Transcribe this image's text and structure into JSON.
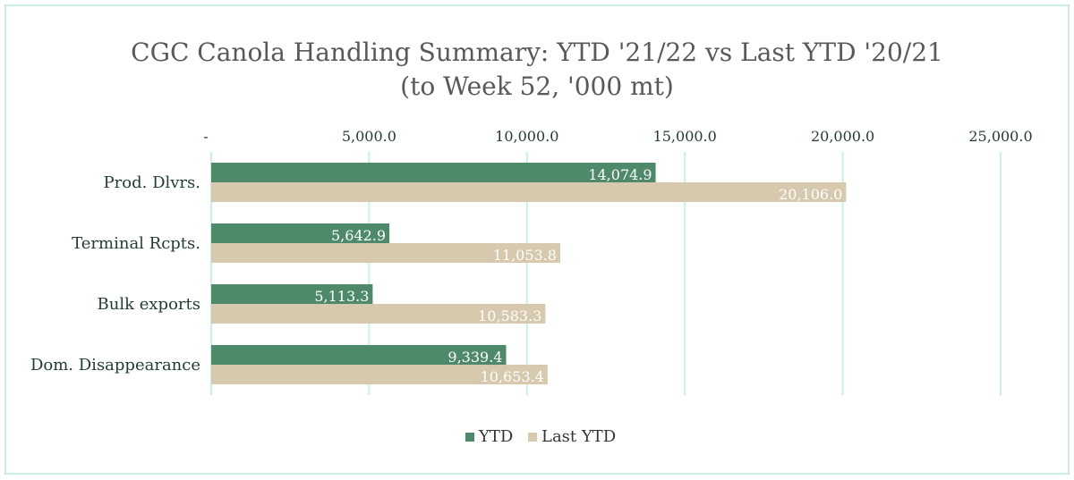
{
  "chart_data": {
    "type": "bar",
    "orientation": "horizontal",
    "title": "CGC Canola Handling Summary: YTD '21/22 vs Last YTD '20/21",
    "subtitle": "(to Week 52, '000 mt)",
    "categories": [
      "Prod. Dlvrs.",
      "Terminal Rcpts.",
      "Bulk exports",
      "Dom. Disappearance"
    ],
    "series": [
      {
        "name": "YTD",
        "color": "#4e8a6a",
        "values": [
          14074.9,
          5642.9,
          5113.3,
          9339.4
        ],
        "labels": [
          "14,074.9",
          "5,642.9",
          "5,113.3",
          "9,339.4"
        ]
      },
      {
        "name": "Last YTD",
        "color": "#d6c9ad",
        "values": [
          20106.0,
          11053.8,
          10583.3,
          10653.4
        ],
        "labels": [
          "20,106.0",
          "11,053.8",
          "10,583.3",
          "10,653.4"
        ]
      }
    ],
    "xlim": [
      0,
      25000
    ],
    "xticks": [
      0,
      5000,
      10000,
      15000,
      20000,
      25000
    ],
    "xtick_labels": [
      "-",
      "5,000.0",
      "10,000.0",
      "15,000.0",
      "20,000.0",
      "25,000.0"
    ],
    "axis_position": "top",
    "grid": true,
    "grid_color": "#c9efe6",
    "legend": "bottom"
  }
}
